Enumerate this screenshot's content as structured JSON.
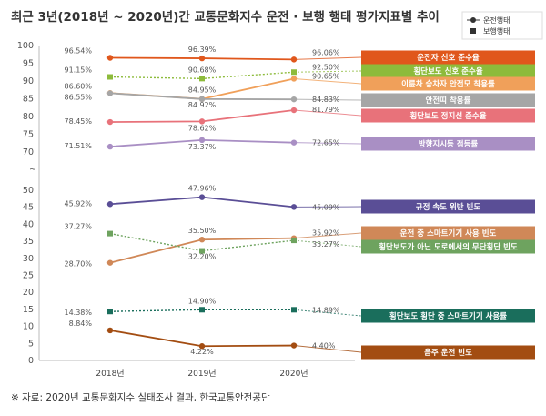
{
  "chart_data": {
    "type": "line",
    "title": "최근 3년(2018년 ~ 2020년)간 교통문화지수 운전 · 보행 행태 평가지표별 추이",
    "source": "※ 자료: 2020년 교통문화지수 실태조사 결과, 한국교통안전공단",
    "legend": [
      {
        "name": "운전행태",
        "marker": "circle"
      },
      {
        "name": "보행행태",
        "marker": "square"
      }
    ],
    "legend_position": "top-right",
    "categories": [
      "2018년",
      "2019년",
      "2020년"
    ],
    "yticks_upper": [
      "100",
      "95",
      "90",
      "85",
      "80",
      "75",
      "70"
    ],
    "yticks_lower": [
      "50",
      "45",
      "40",
      "35",
      "30",
      "25",
      "20",
      "15",
      "10",
      "5",
      "0"
    ],
    "ylim_upper": [
      70,
      100
    ],
    "ylim_lower": [
      0,
      50
    ],
    "axis_break": "~",
    "grid": false,
    "series": [
      {
        "name": "운전자 신호 준수율",
        "group": "운전행태",
        "style": "solid",
        "color": "#e0571c",
        "values": [
          96.54,
          96.39,
          96.06
        ],
        "labels": [
          "96.54%",
          "96.39%",
          "96.06%"
        ]
      },
      {
        "name": "횡단보도 신호 준수율",
        "group": "보행행태",
        "style": "dotted",
        "color": "#8dbb3b",
        "values": [
          91.15,
          90.68,
          92.5
        ],
        "labels": [
          "91.15%",
          "90.68%",
          "92.50%"
        ]
      },
      {
        "name": "이륜차 승차자 안전모 착용률",
        "group": "운전행태",
        "style": "solid",
        "color": "#f0a05a",
        "values": [
          86.6,
          84.95,
          90.65
        ],
        "labels": [
          "86.60%",
          "84.95%",
          "90.65%"
        ]
      },
      {
        "name": "안전띠 착용률",
        "group": "운전행태",
        "style": "solid",
        "color": "#a6a6a6",
        "values": [
          86.55,
          84.92,
          84.83
        ],
        "labels": [
          "86.55%",
          "84.92%",
          "84.83%"
        ]
      },
      {
        "name": "횡단보도 정지선 준수율",
        "group": "운전행태",
        "style": "solid",
        "color": "#e8727a",
        "values": [
          78.45,
          78.62,
          81.79
        ],
        "labels": [
          "78.45%",
          "78.62%",
          "81.79%"
        ]
      },
      {
        "name": "방향지시등 점등률",
        "group": "운전행태",
        "style": "solid",
        "color": "#a98fc4",
        "values": [
          71.51,
          73.37,
          72.65
        ],
        "labels": [
          "71.51%",
          "73.37%",
          "72.65%"
        ]
      },
      {
        "name": "규정 속도 위반 빈도",
        "group": "운전행태",
        "style": "solid",
        "color": "#5a4e96",
        "values": [
          45.92,
          47.96,
          45.09
        ],
        "labels": [
          "45.92%",
          "47.96%",
          "45.09%"
        ]
      },
      {
        "name": "운전 중 스마트기기 사용 빈도",
        "group": "운전행태",
        "style": "solid",
        "color": "#d08858",
        "values": [
          28.7,
          35.5,
          35.92
        ],
        "labels": [
          "28.70%",
          "35.50%",
          "35.92%"
        ]
      },
      {
        "name": "횡단보도가 아닌 도로에서의 무단횡단 빈도",
        "group": "보행행태",
        "style": "dotted",
        "color": "#6ea35f",
        "values": [
          37.27,
          32.2,
          35.27
        ],
        "labels": [
          "37.27%",
          "32.20%",
          "35.27%"
        ]
      },
      {
        "name": "횡단보도 횡단 중 스마트기기 사용률",
        "group": "보행행태",
        "style": "dotted",
        "color": "#1a6e5c",
        "values": [
          14.38,
          14.9,
          14.89
        ],
        "labels": [
          "14.38%",
          "14.90%",
          "14.89%"
        ]
      },
      {
        "name": "음주 운전 빈도",
        "group": "운전행태",
        "style": "solid",
        "color": "#a34d12",
        "values": [
          8.84,
          4.22,
          4.4
        ],
        "labels": [
          "8.84%",
          "4.22%",
          "4.40%"
        ]
      }
    ]
  }
}
